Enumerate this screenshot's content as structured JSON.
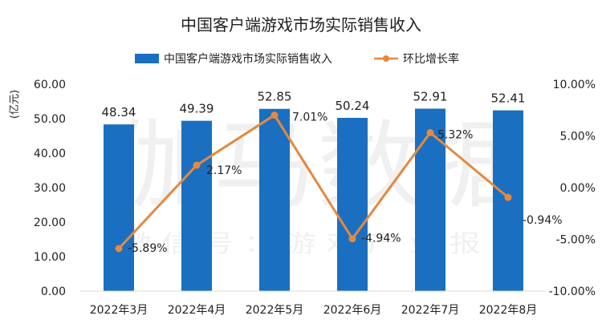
{
  "chart_data": {
    "type": "bar",
    "title": "中国客户端游戏市场实际销售收入",
    "ylabel": "(亿元)",
    "categories": [
      "2022年3月",
      "2022年4月",
      "2022年5月",
      "2022年6月",
      "2022年7月",
      "2022年8月"
    ],
    "series": [
      {
        "name": "中国客户端游戏市场实际销售收入",
        "type": "bar",
        "axis": "left",
        "values": [
          48.34,
          49.39,
          52.85,
          50.24,
          52.91,
          52.41
        ],
        "labels": [
          "48.34",
          "49.39",
          "52.85",
          "50.24",
          "52.91",
          "52.41"
        ],
        "color": "#1a6fc0"
      },
      {
        "name": "环比增长率",
        "type": "line",
        "axis": "right",
        "values": [
          -5.89,
          2.17,
          7.01,
          -4.94,
          5.32,
          -0.94
        ],
        "labels": [
          "-5.89%",
          "2.17%",
          "7.01%",
          "-4.94%",
          "5.32%",
          "-0.94%"
        ],
        "color": "#e4893f"
      }
    ],
    "y_left": {
      "range": [
        0,
        60
      ],
      "ticks": [
        "0.00",
        "10.00",
        "20.00",
        "30.00",
        "40.00",
        "50.00",
        "60.00"
      ]
    },
    "y_right": {
      "range": [
        -10,
        10
      ],
      "ticks": [
        "-10.00%",
        "-5.00%",
        "0.00%",
        "5.00%",
        "10.00%"
      ]
    },
    "legend_position": "top",
    "grid": false
  },
  "watermark": {
    "main": "伽马数据",
    "sub": "微 信 号 ： 游 戏 产 业 报 告"
  }
}
